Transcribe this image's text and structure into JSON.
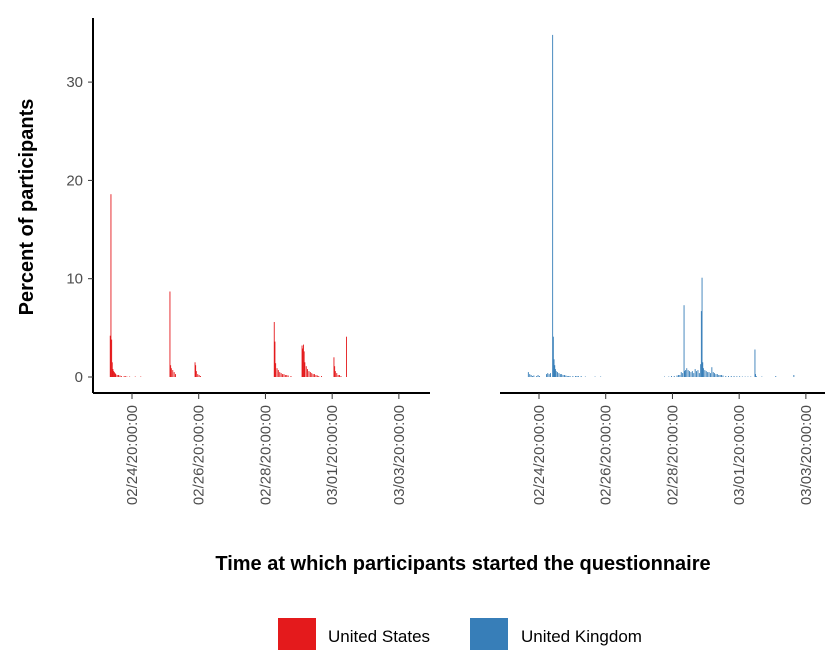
{
  "chart_data": {
    "type": "bar",
    "xlabel": "Time at which participants started the questionnaire",
    "ylabel": "Percent of participants",
    "ylim": [
      0,
      36
    ],
    "yticks": [
      0,
      10,
      20,
      30
    ],
    "x_range_hours": [
      -30,
      260
    ],
    "xticks": [
      {
        "label": "02/24/20:00:00",
        "hour": 0
      },
      {
        "label": "02/26/20:00:00",
        "hour": 48
      },
      {
        "label": "02/28/20:00:00",
        "hour": 96
      },
      {
        "label": "03/01/20:00:00",
        "hour": 144
      },
      {
        "label": "03/03/20:00:00",
        "hour": 192
      }
    ],
    "panels": [
      {
        "name": "United States",
        "color": "#e41a1c",
        "bars": [
          [
            -16,
            4.2
          ],
          [
            -15.5,
            18.6
          ],
          [
            -15,
            3.8
          ],
          [
            -14.5,
            1.5
          ],
          [
            -14,
            0.8
          ],
          [
            -13.5,
            0.6
          ],
          [
            -13,
            0.5
          ],
          [
            -12.5,
            0.4
          ],
          [
            -12,
            0.3
          ],
          [
            -11,
            0.2
          ],
          [
            -10,
            0.2
          ],
          [
            -9,
            0.15
          ],
          [
            -8,
            0.1
          ],
          [
            -6,
            0.1
          ],
          [
            -5,
            0.08
          ],
          [
            -4,
            0.05
          ],
          [
            -2,
            0.05
          ],
          [
            2,
            0.05
          ],
          [
            6,
            0.05
          ],
          [
            27,
            8.7
          ],
          [
            27.5,
            1.2
          ],
          [
            28,
            0.9
          ],
          [
            29,
            0.7
          ],
          [
            30,
            0.5
          ],
          [
            31,
            0.3
          ],
          [
            45,
            1.5
          ],
          [
            45.5,
            1.2
          ],
          [
            46,
            0.6
          ],
          [
            47,
            0.3
          ],
          [
            48,
            0.2
          ],
          [
            49,
            0.1
          ],
          [
            102,
            5.6
          ],
          [
            102.5,
            3.6
          ],
          [
            103,
            1.4
          ],
          [
            104,
            0.9
          ],
          [
            105,
            0.7
          ],
          [
            106,
            0.5
          ],
          [
            107,
            0.4
          ],
          [
            108,
            0.3
          ],
          [
            109,
            0.3
          ],
          [
            110,
            0.2
          ],
          [
            111,
            0.2
          ],
          [
            112,
            0.15
          ],
          [
            114,
            0.1
          ],
          [
            122,
            3.2
          ],
          [
            122.6,
            2.9
          ],
          [
            123,
            3.3
          ],
          [
            123.5,
            2.6
          ],
          [
            124,
            1.5
          ],
          [
            125,
            1.1
          ],
          [
            126,
            0.8
          ],
          [
            127,
            0.6
          ],
          [
            128,
            0.5
          ],
          [
            129,
            0.4
          ],
          [
            130,
            0.3
          ],
          [
            131,
            0.3
          ],
          [
            132,
            0.2
          ],
          [
            133,
            0.15
          ],
          [
            134,
            0.1
          ],
          [
            136,
            0.1
          ],
          [
            145,
            2.0
          ],
          [
            145.5,
            1.1
          ],
          [
            146,
            0.6
          ],
          [
            147,
            0.4
          ],
          [
            148,
            0.2
          ],
          [
            149,
            0.2
          ],
          [
            150,
            0.1
          ],
          [
            154,
            4.1
          ]
        ]
      },
      {
        "name": "United Kingdom",
        "color": "#377eb8",
        "bars": [
          [
            -8,
            0.5
          ],
          [
            -7,
            0.3
          ],
          [
            -6,
            0.2
          ],
          [
            -5,
            0.1
          ],
          [
            -4,
            0.15
          ],
          [
            -2,
            0.1
          ],
          [
            -1,
            0.2
          ],
          [
            0,
            0.1
          ],
          [
            5,
            0.3
          ],
          [
            6,
            0.4
          ],
          [
            7,
            0.3
          ],
          [
            8,
            0.4
          ],
          [
            9.5,
            34.8
          ],
          [
            10,
            4.1
          ],
          [
            10.5,
            1.8
          ],
          [
            11,
            1.2
          ],
          [
            11.5,
            0.8
          ],
          [
            12,
            0.6
          ],
          [
            13,
            0.5
          ],
          [
            14,
            0.4
          ],
          [
            15,
            0.3
          ],
          [
            16,
            0.3
          ],
          [
            17,
            0.2
          ],
          [
            18,
            0.2
          ],
          [
            19,
            0.15
          ],
          [
            20,
            0.1
          ],
          [
            21,
            0.1
          ],
          [
            22,
            0.1
          ],
          [
            24,
            0.1
          ],
          [
            26,
            0.1
          ],
          [
            27,
            0.1
          ],
          [
            28,
            0.1
          ],
          [
            30,
            0.1
          ],
          [
            33,
            0.05
          ],
          [
            40,
            0.05
          ],
          [
            44,
            0.05
          ],
          [
            90,
            0.05
          ],
          [
            93,
            0.05
          ],
          [
            95,
            0.1
          ],
          [
            97,
            0.1
          ],
          [
            99,
            0.15
          ],
          [
            100,
            0.2
          ],
          [
            101,
            0.2
          ],
          [
            102,
            0.5
          ],
          [
            103,
            0.4
          ],
          [
            104,
            7.3
          ],
          [
            104.5,
            0.6
          ],
          [
            105,
            0.7
          ],
          [
            106,
            0.9
          ],
          [
            107,
            0.7
          ],
          [
            108,
            0.6
          ],
          [
            109,
            0.5
          ],
          [
            110,
            0.6
          ],
          [
            111,
            0.4
          ],
          [
            112,
            0.8
          ],
          [
            113,
            0.6
          ],
          [
            114,
            0.7
          ],
          [
            115,
            0.4
          ],
          [
            116,
            1.3
          ],
          [
            116.5,
            6.7
          ],
          [
            117,
            10.1
          ],
          [
            117.5,
            1.5
          ],
          [
            118,
            0.9
          ],
          [
            119,
            0.7
          ],
          [
            120,
            0.6
          ],
          [
            121,
            0.5
          ],
          [
            122,
            0.5
          ],
          [
            123,
            0.4
          ],
          [
            124,
            1.0
          ],
          [
            125,
            0.5
          ],
          [
            126,
            0.4
          ],
          [
            127,
            0.3
          ],
          [
            128,
            0.3
          ],
          [
            129,
            0.2
          ],
          [
            130,
            0.2
          ],
          [
            131,
            0.2
          ],
          [
            132,
            0.15
          ],
          [
            134,
            0.1
          ],
          [
            136,
            0.1
          ],
          [
            138,
            0.1
          ],
          [
            140,
            0.1
          ],
          [
            142,
            0.08
          ],
          [
            144,
            0.08
          ],
          [
            146,
            0.05
          ],
          [
            148,
            0.05
          ],
          [
            150,
            0.05
          ],
          [
            152,
            0.05
          ],
          [
            155,
            2.8
          ],
          [
            155.5,
            0.3
          ],
          [
            156,
            0.1
          ],
          [
            160,
            0.05
          ],
          [
            170,
            0.1
          ],
          [
            183,
            0.2
          ]
        ]
      }
    ],
    "legend": {
      "position": "bottom",
      "entries": [
        {
          "label": "United States",
          "color": "#e41a1c"
        },
        {
          "label": "United Kingdom",
          "color": "#377eb8"
        }
      ]
    },
    "grid": false
  }
}
